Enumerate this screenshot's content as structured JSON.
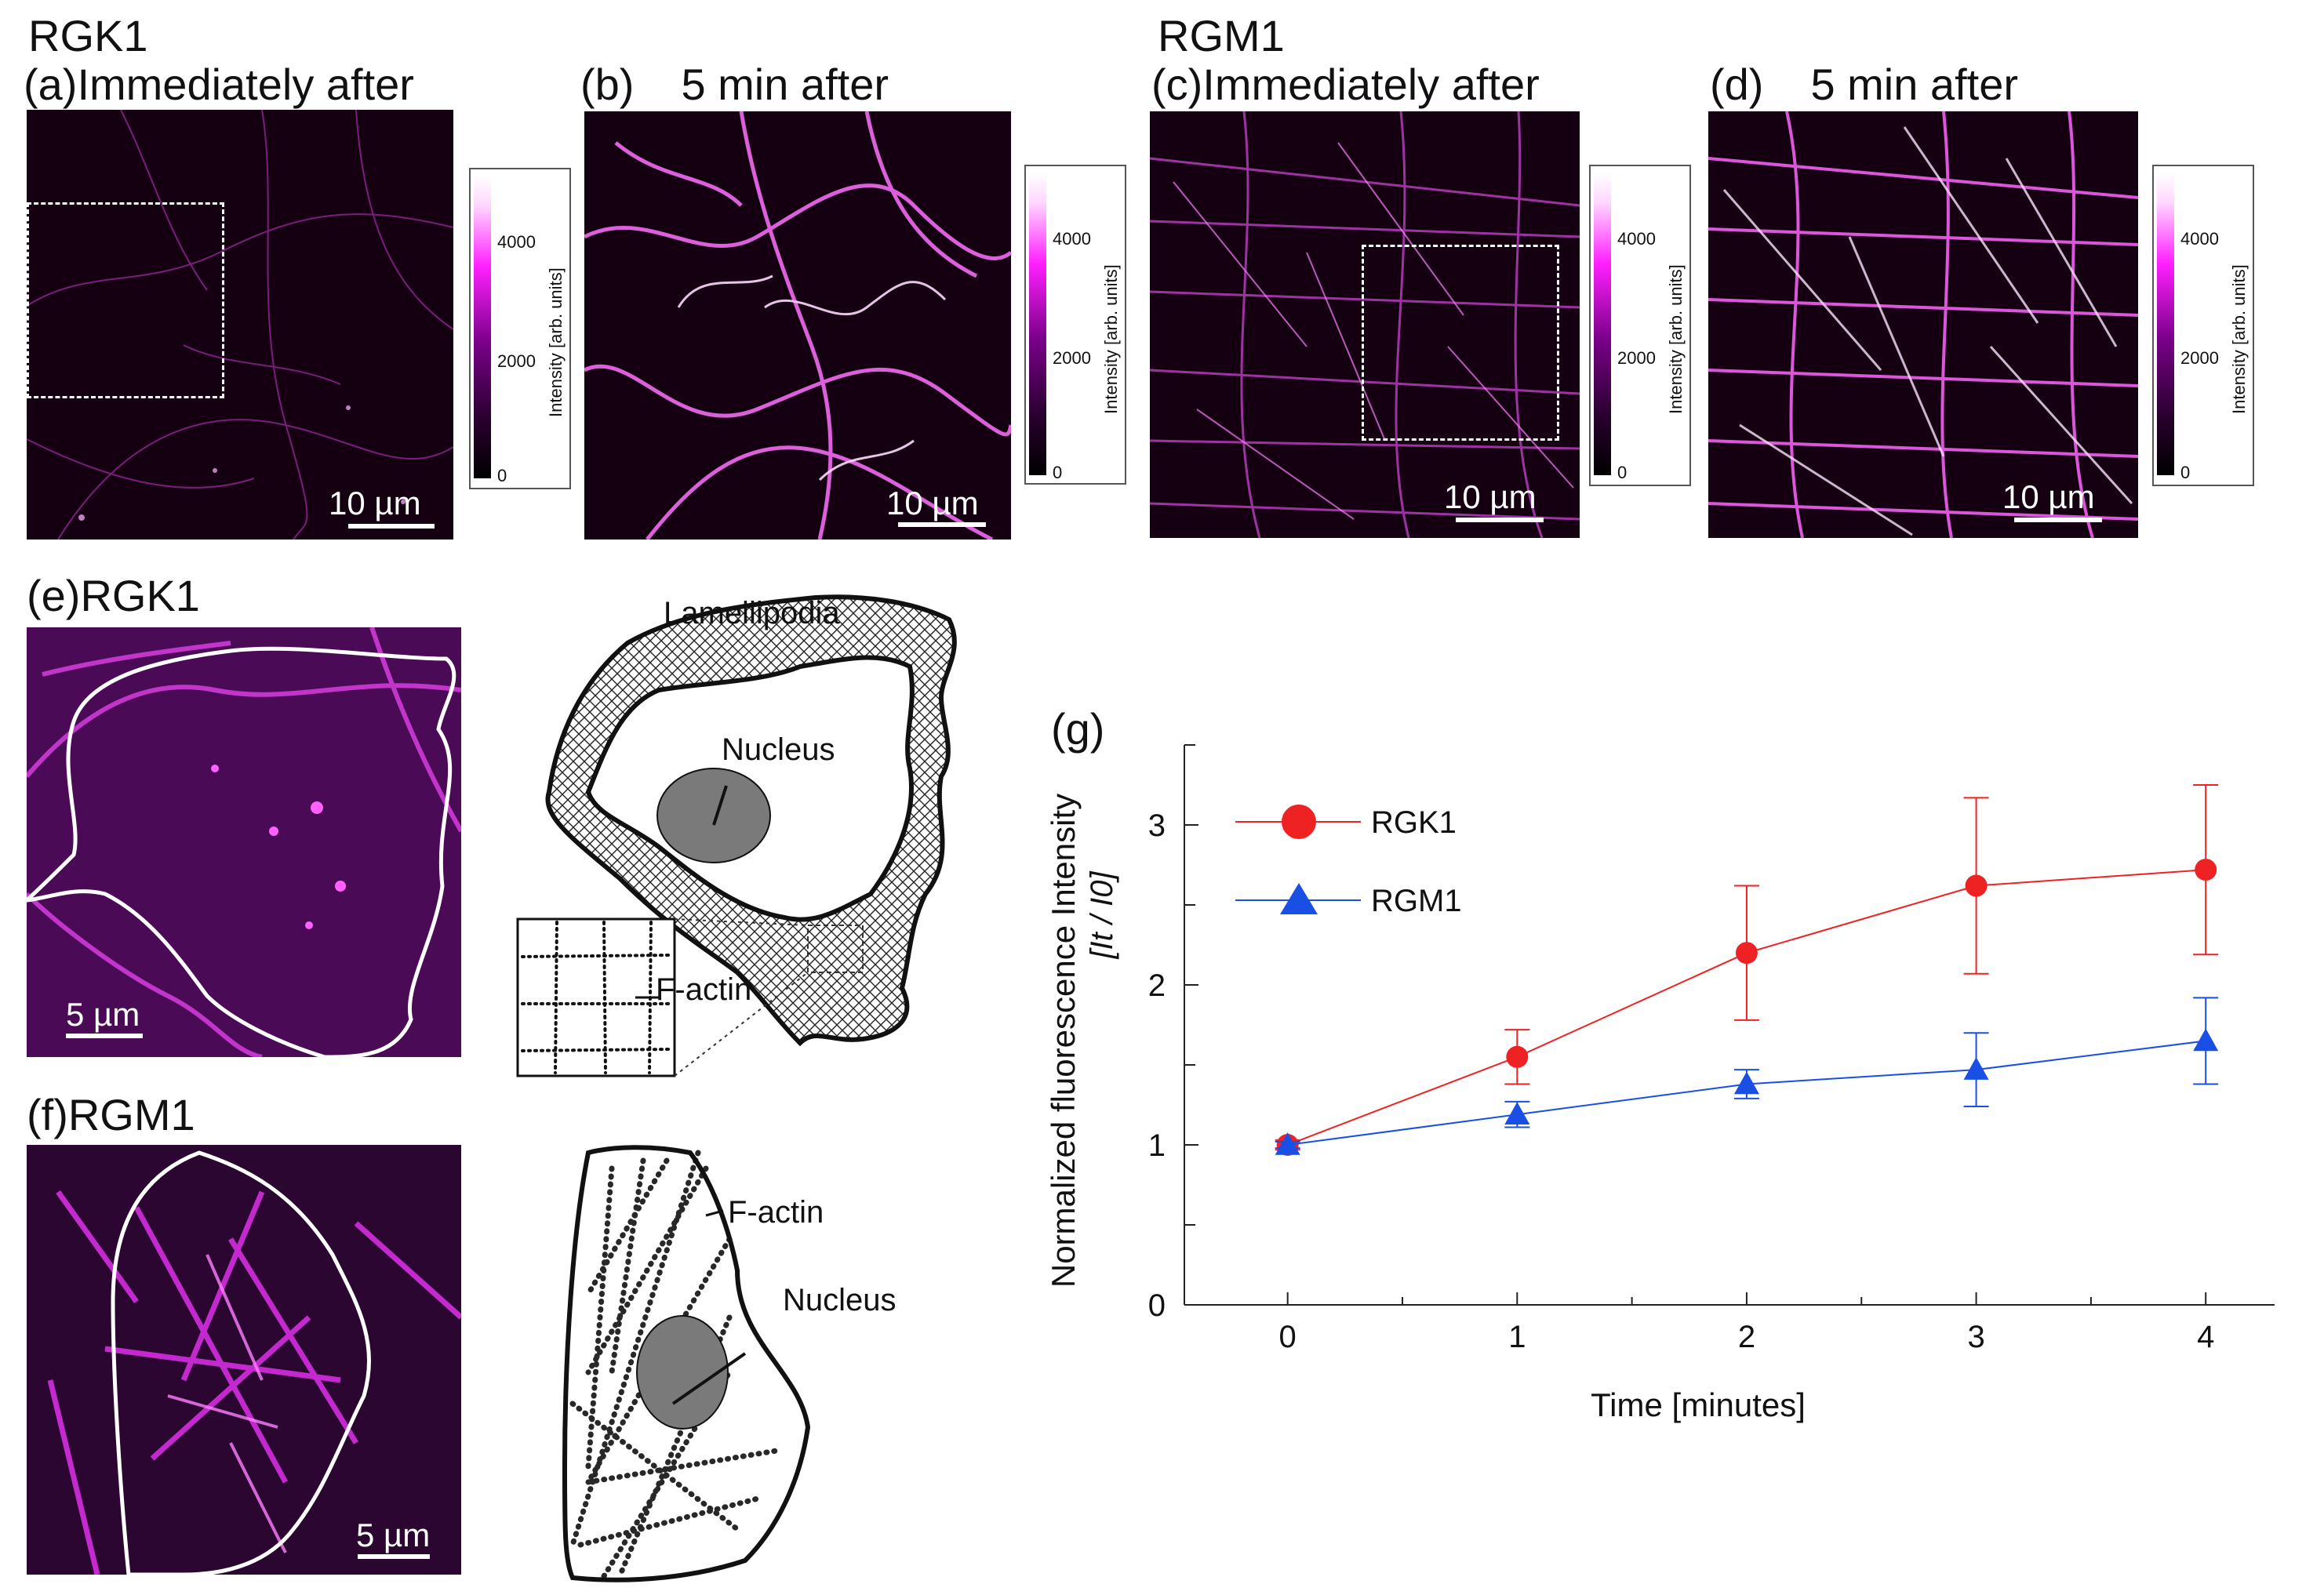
{
  "figure": {
    "group_rgk1": "RGK1",
    "group_rgm1": "RGM1",
    "panels": {
      "a": {
        "label": "(a)",
        "title": "Immediately after",
        "scale": "10 µm"
      },
      "b": {
        "label": "(b)",
        "title": "5 min after",
        "scale": "10 µm"
      },
      "c": {
        "label": "(c)",
        "title": "Immediately after",
        "scale": "10 µm"
      },
      "d": {
        "label": "(d)",
        "title": "5 min after",
        "scale": "10 µm"
      },
      "e": {
        "label": "(e)",
        "title": "RGK1",
        "scale": "5 µm"
      },
      "f": {
        "label": "(f)",
        "title": "RGM1",
        "scale": "5 µm"
      },
      "g": {
        "label": "(g)"
      }
    },
    "colorbar": {
      "ticks": [
        "4000",
        "2000",
        "0"
      ],
      "label": "Intensity [arb. units]"
    },
    "diagram_e": {
      "lamellipodia": "Lamellipodia",
      "nucleus": "Nucleus",
      "factin": "F-actin"
    },
    "diagram_f": {
      "factin": "F-actin",
      "nucleus": "Nucleus"
    }
  },
  "chart_data": {
    "type": "line",
    "title": "",
    "xlabel": "Time [minutes]",
    "ylabel": "Normalized fluorescence Intensity",
    "ylabel_sub": "[It / I0]",
    "x": [
      0,
      1,
      2,
      3,
      4
    ],
    "xlim": [
      -0.45,
      4.3
    ],
    "ylim": [
      0,
      3.5
    ],
    "xticks": [
      "0",
      "1",
      "2",
      "3",
      "4"
    ],
    "yticks": [
      "0",
      "1",
      "2",
      "3"
    ],
    "legend_position": "top-left",
    "series": [
      {
        "name": "RGK1",
        "color": "#ee2222",
        "marker": "circle",
        "values": [
          1.0,
          1.55,
          2.2,
          2.62,
          2.72
        ],
        "errors": [
          0.03,
          0.17,
          0.42,
          0.55,
          0.53
        ]
      },
      {
        "name": "RGM1",
        "color": "#1a4fe6",
        "marker": "triangle",
        "values": [
          1.0,
          1.19,
          1.38,
          1.47,
          1.65
        ],
        "errors": [
          0.02,
          0.08,
          0.09,
          0.23,
          0.27
        ]
      }
    ]
  }
}
